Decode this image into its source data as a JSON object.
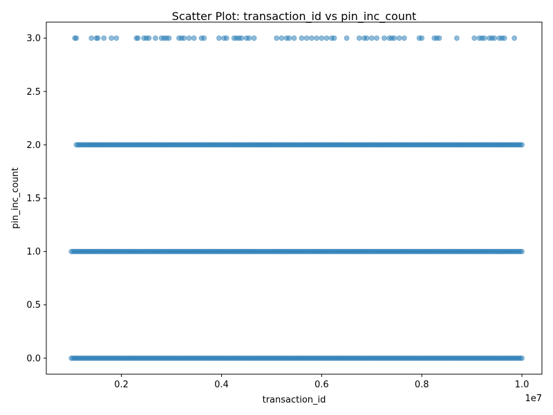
{
  "chart_data": {
    "type": "scatter",
    "title": "Scatter Plot: transaction_id vs pin_inc_count",
    "xlabel": "transaction_id",
    "ylabel": "pin_inc_count",
    "x_offset_label": "1e7",
    "xlim": [
      0.05,
      1.04
    ],
    "ylim": [
      -0.15,
      3.15
    ],
    "x_ticks": [
      0.2,
      0.4,
      0.6,
      0.8,
      1.0
    ],
    "x_tick_labels": [
      "0.2",
      "0.4",
      "0.6",
      "0.8",
      "1.0"
    ],
    "y_ticks": [
      0.0,
      0.5,
      1.0,
      1.5,
      2.0,
      2.5,
      3.0
    ],
    "y_tick_labels": [
      "0.0",
      "0.5",
      "1.0",
      "1.5",
      "2.0",
      "2.5",
      "3.0"
    ],
    "grid": false,
    "marker_color": "#1f77b4",
    "marker_alpha": 0.5,
    "x_scale_note": "x values in units of 1e7",
    "series": [
      {
        "values_by_level": [
          {
            "y": 0,
            "x_range": [
              0.1,
              1.0
            ],
            "density": "dense"
          },
          {
            "y": 1,
            "x_range": [
              0.1,
              1.0
            ],
            "density": "dense"
          },
          {
            "y": 2,
            "x_range": [
              0.11,
              1.0
            ],
            "density": "dense"
          },
          {
            "y": 3,
            "x": [
              0.107,
              0.11,
              0.14,
              0.15,
              0.153,
              0.165,
              0.18,
              0.19,
              0.23,
              0.233,
              0.245,
              0.25,
              0.255,
              0.268,
              0.28,
              0.285,
              0.29,
              0.295,
              0.315,
              0.32,
              0.325,
              0.335,
              0.345,
              0.36,
              0.365,
              0.395,
              0.405,
              0.41,
              0.425,
              0.43,
              0.435,
              0.44,
              0.45,
              0.455,
              0.465,
              0.51,
              0.52,
              0.53,
              0.535,
              0.545,
              0.56,
              0.57,
              0.58,
              0.59,
              0.6,
              0.61,
              0.62,
              0.625,
              0.65,
              0.675,
              0.685,
              0.69,
              0.7,
              0.71,
              0.725,
              0.735,
              0.74,
              0.745,
              0.755,
              0.765,
              0.795,
              0.8,
              0.825,
              0.83,
              0.835,
              0.87,
              0.905,
              0.915,
              0.92,
              0.925,
              0.935,
              0.94,
              0.945,
              0.955,
              0.96,
              0.965,
              0.985
            ]
          }
        ]
      }
    ]
  }
}
